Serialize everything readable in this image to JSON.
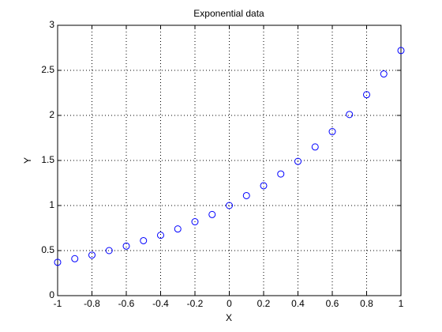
{
  "chart_data": {
    "type": "scatter",
    "title": "Exponential data",
    "x_label": "X",
    "y_label": "Y",
    "x": [
      -1,
      -0.9,
      -0.8,
      -0.7,
      -0.6,
      -0.5,
      -0.4,
      -0.3,
      -0.2,
      -0.1,
      0,
      0.1,
      0.2,
      0.3,
      0.4,
      0.5,
      0.6,
      0.7,
      0.8,
      0.9,
      1
    ],
    "values": [
      0.37,
      0.41,
      0.45,
      0.5,
      0.55,
      0.61,
      0.67,
      0.74,
      0.82,
      0.9,
      1,
      1.11,
      1.22,
      1.35,
      1.49,
      1.65,
      1.82,
      2.01,
      2.23,
      2.46,
      2.72
    ],
    "color": "#0000ff",
    "xlim": [
      -1,
      1
    ],
    "xticks": [
      -1,
      -0.8,
      -0.6,
      -0.4,
      -0.2,
      0,
      0.2,
      0.4,
      0.6,
      0.8,
      1
    ],
    "ylim": [
      0,
      3
    ],
    "yticks": [
      0,
      0.5,
      1,
      1.5,
      2,
      2.5,
      3
    ],
    "grid": true
  }
}
